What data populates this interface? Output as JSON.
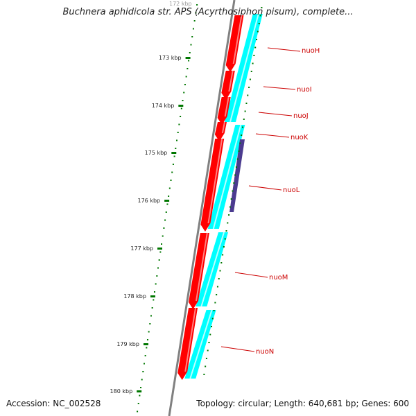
{
  "title": "Buchnera aphidicola str. APS (Acyrthosiphon pisum), complete...",
  "top_clipped_label": "172 kbp",
  "accession": "Accession: NC_002528",
  "summary": "Topology: circular; Length: 640,681 bp; Genes: 600",
  "ticks": [
    {
      "label": "173 kbp"
    },
    {
      "label": "174 kbp"
    },
    {
      "label": "175 kbp"
    },
    {
      "label": "176 kbp"
    },
    {
      "label": "177 kbp"
    },
    {
      "label": "178 kbp"
    },
    {
      "label": "179 kbp"
    },
    {
      "label": "180 kbp"
    }
  ],
  "genes": [
    {
      "name": "nuoH"
    },
    {
      "name": "nuoI"
    },
    {
      "name": "nuoJ"
    },
    {
      "name": "nuoK"
    },
    {
      "name": "nuoL"
    },
    {
      "name": "nuoM"
    },
    {
      "name": "nuoN"
    }
  ],
  "colors": {
    "gene_red": "#ff0000",
    "cds_cyan": "#00ffff",
    "feature_purple": "#4b3b8f",
    "backbone": "#808080",
    "tick_green": "#007700",
    "label_red": "#cc0000"
  }
}
